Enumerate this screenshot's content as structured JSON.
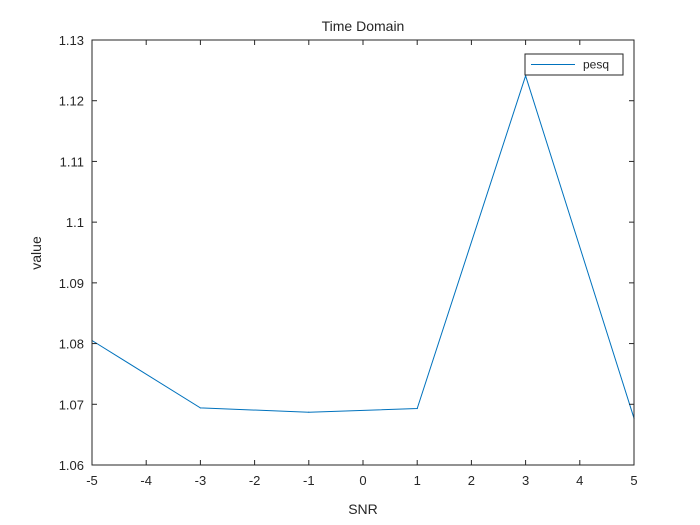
{
  "chart_data": {
    "type": "line",
    "title": "Time Domain",
    "xlabel": "SNR",
    "ylabel": "value",
    "xlim": [
      -5,
      5
    ],
    "ylim": [
      1.06,
      1.13
    ],
    "xticks": [
      -5,
      -4,
      -3,
      -2,
      -1,
      0,
      1,
      2,
      3,
      4,
      5
    ],
    "yticks": [
      1.06,
      1.07,
      1.08,
      1.09,
      1.1,
      1.11,
      1.12,
      1.13
    ],
    "xtick_labels": [
      "-5",
      "-4",
      "-3",
      "-2",
      "-1",
      "0",
      "1",
      "2",
      "3",
      "4",
      "5"
    ],
    "ytick_labels": [
      "1.06",
      "1.07",
      "1.08",
      "1.09",
      "1.1",
      "1.11",
      "1.12",
      "1.13"
    ],
    "grid": false,
    "legend_position": "top-right",
    "series": [
      {
        "name": "pesq",
        "color": "#0072bd",
        "x": [
          -5,
          -3,
          -1,
          1,
          3,
          5
        ],
        "y": [
          1.0805,
          1.0694,
          1.0687,
          1.0693,
          1.1241,
          1.0677
        ]
      }
    ]
  }
}
